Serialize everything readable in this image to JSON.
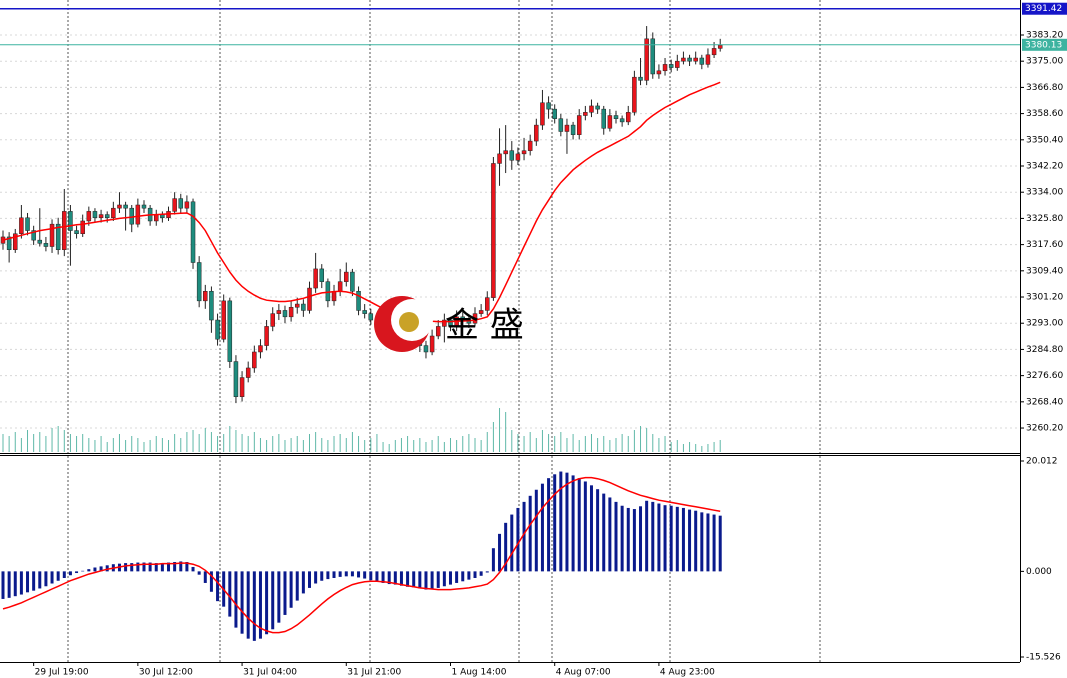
{
  "chart_data": {
    "type": "candlestick",
    "categories": [
      null,
      null,
      null,
      null,
      null,
      "29 Jul 19:00",
      null,
      null,
      null,
      null,
      null,
      null,
      null,
      null,
      null,
      null,
      null,
      null,
      null,
      null,
      null,
      null,
      "30 Jul 12:00",
      null,
      null,
      null,
      null,
      null,
      null,
      null,
      null,
      null,
      null,
      null,
      null,
      null,
      null,
      null,
      null,
      "31 Jul 04:00",
      null,
      null,
      null,
      null,
      null,
      null,
      null,
      null,
      null,
      null,
      null,
      null,
      null,
      null,
      null,
      null,
      "31 Jul 21:00",
      null,
      null,
      null,
      null,
      null,
      null,
      null,
      null,
      null,
      null,
      null,
      null,
      null,
      null,
      null,
      null,
      "1 Aug 14:00",
      null,
      null,
      null,
      null,
      null,
      null,
      null,
      null,
      null,
      null,
      null,
      null,
      null,
      null,
      null,
      null,
      "4 Aug 07:00",
      null,
      null,
      null,
      null,
      null,
      null,
      null,
      null,
      null,
      null,
      null,
      null,
      null,
      null,
      null,
      null,
      "4 Aug 23:00",
      null,
      null,
      null,
      null,
      null,
      null,
      null,
      null,
      null,
      null
    ],
    "candles": [
      [
        3318,
        3322,
        3316,
        3320
      ],
      [
        3320,
        3321.5,
        3312,
        3316
      ],
      [
        3316,
        3322.5,
        3315,
        3321
      ],
      [
        3321,
        3330,
        3319.5,
        3326
      ],
      [
        3326,
        3327.5,
        3320.5,
        3322
      ],
      [
        3322,
        3323.5,
        3317.5,
        3319
      ],
      [
        3319,
        3329,
        3317,
        3318
      ],
      [
        3318,
        3320,
        3315.5,
        3317
      ],
      [
        3317,
        3325.5,
        3315,
        3324
      ],
      [
        3324,
        3326,
        3314.5,
        3316
      ],
      [
        3316,
        3335,
        3314,
        3328
      ],
      [
        3328,
        3330,
        3311,
        3322
      ],
      [
        3322,
        3323.5,
        3319.5,
        3321
      ],
      [
        3321,
        3327,
        3320,
        3325
      ],
      [
        3325,
        3329.5,
        3323.5,
        3328
      ],
      [
        3328,
        3329,
        3324.5,
        3326
      ],
      [
        3326,
        3328.5,
        3324.5,
        3327
      ],
      [
        3327,
        3328,
        3324.5,
        3326
      ],
      [
        3326,
        3331,
        3325,
        3329
      ],
      [
        3329,
        3334,
        3327.5,
        3330
      ],
      [
        3330,
        3331,
        3322,
        3329
      ],
      [
        3329,
        3330,
        3321.5,
        3324
      ],
      [
        3324,
        3332,
        3323,
        3330
      ],
      [
        3330,
        3331.5,
        3327.5,
        3329
      ],
      [
        3329,
        3330,
        3323.5,
        3325
      ],
      [
        3325,
        3328.5,
        3323.5,
        3327
      ],
      [
        3327,
        3328,
        3324.5,
        3326
      ],
      [
        3326,
        3329.5,
        3325,
        3328
      ],
      [
        3328,
        3334,
        3327,
        3332
      ],
      [
        3332,
        3333.5,
        3327.5,
        3329
      ],
      [
        3329,
        3333,
        3327.5,
        3331
      ],
      [
        3331,
        3332,
        3310,
        3312
      ],
      [
        3312,
        3314,
        3298,
        3300
      ],
      [
        3300,
        3305,
        3297.5,
        3303
      ],
      [
        3303,
        3304.5,
        3290,
        3294
      ],
      [
        3294,
        3296,
        3286,
        3288
      ],
      [
        3288,
        3302,
        3287,
        3300
      ],
      [
        3300,
        3301,
        3279,
        3281
      ],
      [
        3281,
        3283,
        3268,
        3270
      ],
      [
        3270,
        3278,
        3268.5,
        3276
      ],
      [
        3276,
        3281,
        3274.5,
        3279
      ],
      [
        3279,
        3286,
        3277.5,
        3284
      ],
      [
        3284,
        3288,
        3282,
        3286
      ],
      [
        3286,
        3294,
        3284.5,
        3292
      ],
      [
        3292,
        3298,
        3290.5,
        3296
      ],
      [
        3296,
        3299,
        3294,
        3297
      ],
      [
        3297,
        3298.5,
        3293,
        3295
      ],
      [
        3295,
        3300,
        3293.5,
        3298
      ],
      [
        3298,
        3301,
        3296,
        3299
      ],
      [
        3299,
        3300.5,
        3295,
        3297
      ],
      [
        3297,
        3306,
        3296,
        3304
      ],
      [
        3304,
        3315,
        3302.5,
        3310
      ],
      [
        3310,
        3311.5,
        3304,
        3306
      ],
      [
        3306,
        3307,
        3298,
        3300
      ],
      [
        3300,
        3305,
        3298.5,
        3303
      ],
      [
        3303,
        3310,
        3301.5,
        3306
      ],
      [
        3306,
        3312,
        3304.5,
        3309
      ],
      [
        3309,
        3310,
        3301.5,
        3303
      ],
      [
        3303,
        3304.5,
        3295.5,
        3297
      ],
      [
        3297,
        3299,
        3294.5,
        3296
      ],
      [
        3296,
        3297.5,
        3292.5,
        3294
      ],
      [
        3294,
        3296,
        3291,
        3293
      ],
      [
        3293,
        3294.5,
        3288.5,
        3290
      ],
      [
        3290,
        3294,
        3289,
        3292
      ],
      [
        3292,
        3293,
        3287.5,
        3289
      ],
      [
        3289,
        3293,
        3288,
        3291
      ],
      [
        3291,
        3292,
        3286,
        3288
      ],
      [
        3288,
        3292,
        3286.5,
        3290
      ],
      [
        3290,
        3291,
        3284,
        3286
      ],
      [
        3286,
        3287.5,
        3282,
        3284
      ],
      [
        3284,
        3291,
        3283,
        3289
      ],
      [
        3289,
        3294,
        3288,
        3292
      ],
      [
        3292,
        3296,
        3287,
        3294
      ],
      [
        3294,
        3295,
        3290.5,
        3292
      ],
      [
        3292,
        3297,
        3290.5,
        3295
      ],
      [
        3295,
        3296.5,
        3292.5,
        3294
      ],
      [
        3294,
        3295,
        3291.5,
        3293
      ],
      [
        3293,
        3298,
        3292,
        3296
      ],
      [
        3296,
        3299,
        3295,
        3297
      ],
      [
        3297,
        3303,
        3295.5,
        3301
      ],
      [
        3301,
        3345,
        3300,
        3343
      ],
      [
        3343,
        3354,
        3336,
        3346
      ],
      [
        3346,
        3355,
        3340,
        3347
      ],
      [
        3347,
        3350,
        3341,
        3344
      ],
      [
        3344,
        3348,
        3342.5,
        3346
      ],
      [
        3346,
        3351,
        3344,
        3347
      ],
      [
        3347,
        3352,
        3345.5,
        3350
      ],
      [
        3350,
        3357,
        3348.5,
        3355
      ],
      [
        3355,
        3366,
        3353.5,
        3362
      ],
      [
        3362,
        3364,
        3357,
        3360
      ],
      [
        3360,
        3361.5,
        3355.5,
        3357
      ],
      [
        3357,
        3358.5,
        3351.5,
        3353
      ],
      [
        3353,
        3357,
        3346,
        3355
      ],
      [
        3355,
        3356,
        3350.5,
        3352
      ],
      [
        3352,
        3360,
        3350.5,
        3358
      ],
      [
        3358,
        3361,
        3356.5,
        3359
      ],
      [
        3359,
        3363,
        3357.5,
        3361
      ],
      [
        3361,
        3362,
        3358.5,
        3360
      ],
      [
        3360,
        3361,
        3352,
        3354
      ],
      [
        3354,
        3360,
        3353,
        3358
      ],
      [
        3358,
        3359.5,
        3355.5,
        3357
      ],
      [
        3357,
        3358,
        3354.5,
        3356
      ],
      [
        3356,
        3361,
        3355,
        3359
      ],
      [
        3359,
        3372,
        3358,
        3370
      ],
      [
        3370,
        3376,
        3367.5,
        3369
      ],
      [
        3369,
        3386,
        3367.5,
        3382
      ],
      [
        3382,
        3384,
        3369.5,
        3371
      ],
      [
        3371,
        3374,
        3369.5,
        3372
      ],
      [
        3372,
        3376,
        3370.5,
        3374
      ],
      [
        3374,
        3375.5,
        3371.5,
        3373
      ],
      [
        3373,
        3377,
        3372,
        3375
      ],
      [
        3375,
        3378,
        3374,
        3376
      ],
      [
        3376,
        3377,
        3373.5,
        3375
      ],
      [
        3375,
        3378,
        3374,
        3376
      ],
      [
        3376,
        3377,
        3372.5,
        3374
      ],
      [
        3374,
        3379,
        3373,
        3377
      ],
      [
        3377,
        3381,
        3376,
        3379
      ],
      [
        3379,
        3382,
        3378,
        3380
      ]
    ],
    "up_color": "#e8141c",
    "down_color": "#1e8c7e",
    "wick_color": "#222222",
    "ma": {
      "color": "#ff0000",
      "values": [
        3319,
        3319.5,
        3320,
        3320.5,
        3321,
        3321.5,
        3322,
        3322.3,
        3322.6,
        3323,
        3323.2,
        3323.5,
        3323.8,
        3324,
        3324.3,
        3324.6,
        3324.9,
        3325.2,
        3325.5,
        3325.8,
        3326,
        3326.2,
        3326.5,
        3326.7,
        3326.9,
        3327,
        3327.1,
        3327.2,
        3327.3,
        3327.4,
        3327.5,
        3326.5,
        3324.5,
        3322,
        3318.5,
        3315,
        3312,
        3309,
        3306.5,
        3304.5,
        3303,
        3301.8,
        3300.8,
        3300.2,
        3300,
        3299.8,
        3299.8,
        3300,
        3300.4,
        3300.8,
        3301.4,
        3302,
        3302.5,
        3302.7,
        3302.9,
        3303,
        3302.8,
        3302.4,
        3301.6,
        3300.6,
        3299.6,
        3298.6,
        3297.6,
        3296.8,
        3296,
        3295.4,
        3294.8,
        3294.4,
        3294,
        3293.8,
        3293.6,
        3293.5,
        3293.5,
        3293.5,
        3293.6,
        3293.7,
        3293.8,
        3294,
        3294.4,
        3295,
        3297.5,
        3301,
        3305,
        3309,
        3313,
        3317,
        3321,
        3325,
        3328.5,
        3331.5,
        3334.5,
        3337,
        3339,
        3341,
        3342.5,
        3344,
        3345.3,
        3346.5,
        3347.5,
        3348.5,
        3349.5,
        3350.5,
        3351.5,
        3353,
        3354.5,
        3356.5,
        3358,
        3359.3,
        3360.5,
        3361.5,
        3362.5,
        3363.5,
        3364.5,
        3365.3,
        3366.1,
        3366.9,
        3367.6,
        3368.4
      ]
    },
    "volume": {
      "color": "#5fb8a8",
      "ylim": [
        0,
        10000
      ],
      "values": [
        1800,
        1600,
        2000,
        1400,
        2200,
        1800,
        2000,
        1600,
        2400,
        2600,
        2200,
        1800,
        1600,
        1800,
        1400,
        1200,
        1600,
        1000,
        1400,
        1800,
        1200,
        1600,
        1400,
        1000,
        1200,
        1600,
        1400,
        1200,
        1800,
        1400,
        2000,
        2200,
        1800,
        2400,
        2000,
        1600,
        1800,
        2600,
        2200,
        1800,
        1600,
        2000,
        1400,
        1200,
        1600,
        1800,
        1200,
        1400,
        1600,
        1200,
        1800,
        2000,
        1400,
        1200,
        1600,
        1800,
        1400,
        2000,
        1600,
        1200,
        1400,
        1800,
        1000,
        800,
        1200,
        1400,
        1600,
        1200,
        1400,
        1000,
        1200,
        1600,
        1000,
        1400,
        1200,
        1600,
        1800,
        1400,
        1200,
        2000,
        3000,
        4400,
        4000,
        2200,
        1800,
        1600,
        2000,
        1400,
        2200,
        1800,
        1600,
        2000,
        1400,
        1800,
        1200,
        1600,
        1800,
        1400,
        1600,
        1200,
        1400,
        1800,
        1600,
        2200,
        2600,
        2400,
        1800,
        1400,
        1600,
        1000,
        1200,
        800,
        1000,
        800,
        600,
        800,
        1000,
        1200
      ]
    },
    "ylim": [
      3252.7,
      3394.15
    ],
    "yticks": [
      {
        "value": 3383.2,
        "label": "3383.20"
      },
      {
        "value": 3375,
        "label": "3375.00"
      },
      {
        "value": 3366.8,
        "label": "3366.80"
      },
      {
        "value": 3358.6,
        "label": "3358.60"
      },
      {
        "value": 3350.4,
        "label": "3350.40"
      },
      {
        "value": 3342.2,
        "label": "3342.20"
      },
      {
        "value": 3334,
        "label": "3334.00"
      },
      {
        "value": 3325.8,
        "label": "3325.80"
      },
      {
        "value": 3317.6,
        "label": "3317.60"
      },
      {
        "value": 3309.4,
        "label": "3309.40"
      },
      {
        "value": 3301.2,
        "label": "3301.20"
      },
      {
        "value": 3293,
        "label": "3293.00"
      },
      {
        "value": 3284.8,
        "label": "3284.80"
      },
      {
        "value": 3276.6,
        "label": "3276.60"
      },
      {
        "value": 3268.4,
        "label": "3268.40"
      },
      {
        "value": 3260.2,
        "label": "3260.20"
      }
    ],
    "grid": true,
    "price_lines": [
      {
        "value": 3391.42,
        "color": "#1515c8"
      },
      {
        "value": 3380.13,
        "color": "#3db3a0"
      }
    ],
    "macd": {
      "ylim": [
        -15.526,
        20.012
      ],
      "yticks": [
        20.012,
        {
          "value": 0,
          "label": "0.000"
        },
        -15.526
      ],
      "histogram": {
        "color": "#0a1a8c",
        "values": [
          -5,
          -4.8,
          -4.5,
          -4.2,
          -3.8,
          -3.5,
          -3.1,
          -2.7,
          -2.2,
          -1.7,
          -1.2,
          -0.7,
          -0.3,
          0.1,
          0.4,
          0.7,
          0.9,
          1.1,
          1.3,
          1.4,
          1.5,
          1.5,
          1.6,
          1.6,
          1.6,
          1.5,
          1.5,
          1.6,
          1.7,
          1.8,
          1.7,
          0.8,
          -0.6,
          -2.1,
          -3.7,
          -5.4,
          -6.4,
          -8.2,
          -10.2,
          -11.3,
          -12.2,
          -12.6,
          -12.2,
          -11.4,
          -10.5,
          -9.3,
          -7.9,
          -6.6,
          -5.3,
          -4,
          -3,
          -2.2,
          -1.7,
          -1.4,
          -1.2,
          -1,
          -0.9,
          -0.9,
          -1.1,
          -1.3,
          -1.6,
          -1.9,
          -2.1,
          -2.3,
          -2.4,
          -2.6,
          -2.8,
          -2.9,
          -3.1,
          -3.3,
          -3.2,
          -3,
          -2.7,
          -2.4,
          -2.1,
          -1.8,
          -1.5,
          -1.2,
          -0.8,
          -0.2,
          4.2,
          6.8,
          8.8,
          10.3,
          11.5,
          12.6,
          13.7,
          14.8,
          15.9,
          16.9,
          17.6,
          18.1,
          17.9,
          17.4,
          16.9,
          16.3,
          15.6,
          14.9,
          14.1,
          13.4,
          12.6,
          11.9,
          11.5,
          11.3,
          11.8,
          12.8,
          12.6,
          12.3,
          12,
          11.9,
          11.7,
          11.5,
          11.2,
          11,
          10.7,
          10.5,
          10.3,
          10.1
        ]
      },
      "signal": {
        "color": "#ff0000",
        "values": [
          -6.8,
          -6.5,
          -6.1,
          -5.7,
          -5.2,
          -4.7,
          -4.2,
          -3.7,
          -3.2,
          -2.7,
          -2.2,
          -1.7,
          -1.3,
          -0.9,
          -0.5,
          -0.2,
          0.1,
          0.4,
          0.6,
          0.8,
          1,
          1.1,
          1.2,
          1.3,
          1.3,
          1.3,
          1.4,
          1.4,
          1.4,
          1.5,
          1.5,
          1.3,
          0.9,
          0.2,
          -0.8,
          -2,
          -3.3,
          -4.6,
          -6,
          -7.3,
          -8.5,
          -9.5,
          -10.3,
          -10.8,
          -11.1,
          -11.1,
          -10.9,
          -10.4,
          -9.7,
          -8.8,
          -7.9,
          -6.9,
          -5.9,
          -5,
          -4.2,
          -3.5,
          -2.9,
          -2.4,
          -2.1,
          -1.9,
          -1.8,
          -1.8,
          -1.9,
          -2,
          -2.2,
          -2.4,
          -2.6,
          -2.8,
          -3,
          -3.1,
          -3.2,
          -3.3,
          -3.3,
          -3.3,
          -3.2,
          -3.1,
          -3,
          -2.8,
          -2.6,
          -2.3,
          -1.5,
          -0.2,
          1.4,
          3.2,
          5,
          6.8,
          8.5,
          10,
          11.5,
          12.8,
          14,
          15,
          15.8,
          16.4,
          16.8,
          17,
          17,
          16.8,
          16.5,
          16.1,
          15.6,
          15.1,
          14.6,
          14.2,
          13.8,
          13.5,
          13.2,
          12.9,
          12.7,
          12.5,
          12.3,
          12.1,
          11.9,
          11.7,
          11.5,
          11.3,
          11.1,
          10.9
        ]
      }
    }
  },
  "watermark": "金 盛"
}
